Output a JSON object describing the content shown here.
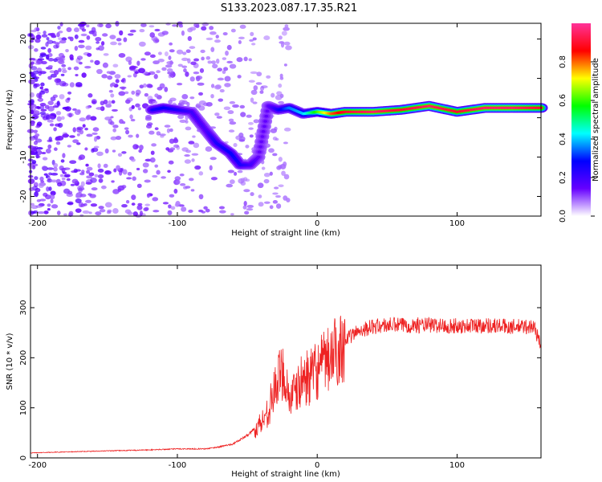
{
  "figure_title": "S133.2023.087.17.35.R21",
  "chart_data": [
    {
      "type": "heatmap",
      "xlabel": "Height of straight line (km)",
      "ylabel": "Frequency (Hz)",
      "xlim": [
        -205,
        160
      ],
      "ylim": [
        -25,
        24
      ],
      "xticks": [
        -200,
        -100,
        0,
        100
      ],
      "yticks": [
        -20,
        -10,
        0,
        10,
        20
      ],
      "colorbar": {
        "label": "Normalized spectral amplitude",
        "range": [
          0,
          1
        ],
        "ticks": [
          "0.0",
          "0.2",
          "0.4",
          "0.6",
          "0.8"
        ],
        "colors": [
          "#ffffff",
          "#6600ff",
          "#0000ff",
          "#00ffff",
          "#00ff00",
          "#ffff00",
          "#ff0000",
          "#ff3399"
        ]
      },
      "ridge": [
        {
          "x": -118,
          "y": 2,
          "amp": 0.25
        },
        {
          "x": -110,
          "y": 2.5,
          "amp": 0.28
        },
        {
          "x": -100,
          "y": 2,
          "amp": 0.25
        },
        {
          "x": -90,
          "y": 1.5,
          "amp": 0.2
        },
        {
          "x": -80,
          "y": -3,
          "amp": 0.18
        },
        {
          "x": -72,
          "y": -6.5,
          "amp": 0.25
        },
        {
          "x": -62,
          "y": -9,
          "amp": 0.28
        },
        {
          "x": -55,
          "y": -12,
          "amp": 0.25
        },
        {
          "x": -48,
          "y": -12,
          "amp": 0.2
        },
        {
          "x": -42,
          "y": -10,
          "amp": 0.15
        },
        {
          "x": -35,
          "y": 3,
          "amp": 0.15
        },
        {
          "x": -28,
          "y": 2,
          "amp": 0.25
        },
        {
          "x": -20,
          "y": 2.5,
          "amp": 0.35
        },
        {
          "x": -10,
          "y": 1,
          "amp": 0.4
        },
        {
          "x": 0,
          "y": 1.5,
          "amp": 0.6
        },
        {
          "x": 10,
          "y": 1,
          "amp": 0.8
        },
        {
          "x": 20,
          "y": 1.5,
          "amp": 0.9
        },
        {
          "x": 40,
          "y": 1.5,
          "amp": 0.95
        },
        {
          "x": 60,
          "y": 2,
          "amp": 0.9
        },
        {
          "x": 80,
          "y": 3,
          "amp": 0.95
        },
        {
          "x": 100,
          "y": 1.5,
          "amp": 0.9
        },
        {
          "x": 120,
          "y": 2.5,
          "amp": 0.95
        },
        {
          "x": 140,
          "y": 2.5,
          "amp": 0.95
        },
        {
          "x": 160,
          "y": 2.5,
          "amp": 0.9
        }
      ]
    },
    {
      "type": "line",
      "xlabel": "Height of straight line (km)",
      "ylabel": "SNR (10 * v/v)",
      "xlim": [
        -205,
        160
      ],
      "ylim": [
        0,
        385
      ],
      "xticks": [
        -200,
        -100,
        0,
        100
      ],
      "yticks": [
        0,
        100,
        200,
        300
      ],
      "series": [
        {
          "color": "#ee2222",
          "x": [
            -205,
            -180,
            -150,
            -120,
            -100,
            -80,
            -70,
            -60,
            -50,
            -40,
            -35,
            -30,
            -25,
            -22,
            -20,
            -15,
            -10,
            -5,
            0,
            10,
            20,
            30,
            40,
            50,
            60,
            80,
            100,
            120,
            140,
            155,
            160
          ],
          "y": [
            10,
            12,
            14,
            16,
            18,
            18,
            22,
            28,
            45,
            70,
            95,
            140,
            175,
            150,
            120,
            130,
            160,
            160,
            175,
            200,
            235,
            255,
            262,
            265,
            265,
            265,
            263,
            265,
            262,
            262,
            225
          ]
        }
      ]
    }
  ]
}
